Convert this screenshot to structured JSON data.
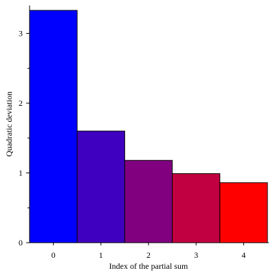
{
  "chart_data": {
    "type": "bar",
    "title": "",
    "xlabel": "Index of the partial sum",
    "ylabel": "Quadratic deviation",
    "categories": [
      "0",
      "1",
      "2",
      "3",
      "4"
    ],
    "values": [
      3.33,
      1.6,
      1.18,
      0.99,
      0.86
    ],
    "colors": [
      "#0000ff",
      "#4000bf",
      "#800080",
      "#c00040",
      "#ff0000"
    ],
    "ylim": [
      0,
      3.4
    ],
    "y_ticks": [
      0,
      1,
      2,
      3
    ],
    "y_minor_ticks": [
      0.5,
      1.5,
      2.5
    ],
    "grid": false,
    "legend": "none",
    "bar_outline": "#000000"
  }
}
